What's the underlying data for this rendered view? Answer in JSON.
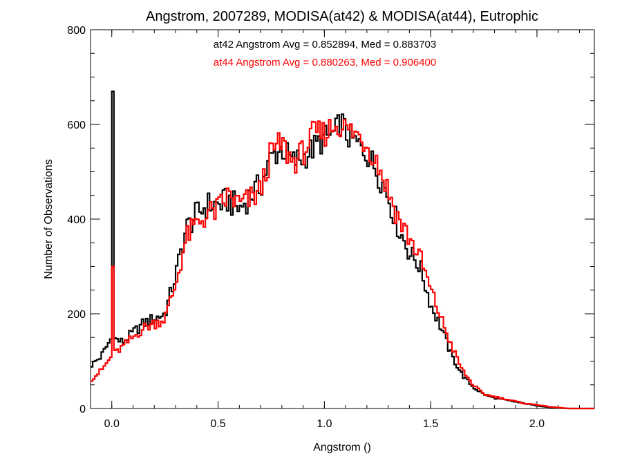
{
  "chart_data": {
    "type": "line",
    "title": "Angstrom, 2007289, MODISA(at42) & MODISA(at44), Eutrophic",
    "xlabel": "Angstrom ()",
    "ylabel": "Number of Observations",
    "xlim": [
      -0.1,
      2.27
    ],
    "ylim": [
      0,
      800
    ],
    "x_ticks": [
      0.0,
      0.5,
      1.0,
      1.5,
      2.0
    ],
    "x_tick_labels": [
      "0.0",
      "0.5",
      "1.0",
      "1.5",
      "2.0"
    ],
    "y_ticks": [
      0,
      200,
      400,
      600,
      800
    ],
    "y_tick_labels": [
      "0",
      "200",
      "400",
      "600",
      "800"
    ],
    "grid": false,
    "legend": "none",
    "annotations": [
      {
        "text": "at42 Angstrom Avg = 0.852894, Med = 0.883703",
        "color": "#000000"
      },
      {
        "text": "at44 Angstrom Avg = 0.880263, Med = 0.906400",
        "color": "#ff0000"
      }
    ],
    "bin_width": 0.01,
    "x": [
      -0.1,
      -0.05,
      0.0,
      0.05,
      0.1,
      0.15,
      0.2,
      0.25,
      0.3,
      0.35,
      0.4,
      0.45,
      0.5,
      0.55,
      0.6,
      0.65,
      0.7,
      0.75,
      0.8,
      0.85,
      0.9,
      0.95,
      1.0,
      1.05,
      1.08,
      1.1,
      1.15,
      1.2,
      1.25,
      1.3,
      1.35,
      1.4,
      1.45,
      1.5,
      1.55,
      1.6,
      1.65,
      1.7,
      1.75,
      1.8,
      1.85,
      1.9,
      1.95,
      2.0,
      2.05,
      2.1,
      2.15,
      2.27
    ],
    "series": [
      {
        "color": "#000000",
        "values": [
          90,
          110,
          150,
          140,
          160,
          180,
          190,
          200,
          280,
          380,
          410,
          430,
          430,
          440,
          420,
          450,
          470,
          530,
          550,
          520,
          530,
          550,
          570,
          580,
          610,
          580,
          560,
          540,
          500,
          450,
          380,
          330,
          300,
          220,
          170,
          110,
          70,
          45,
          30,
          22,
          18,
          14,
          10,
          6,
          3,
          1,
          0,
          0
        ],
        "spikes": [
          {
            "x": 0.0,
            "value": 670
          }
        ]
      },
      {
        "color": "#ff0000",
        "values": [
          60,
          80,
          110,
          130,
          150,
          170,
          180,
          190,
          260,
          360,
          390,
          410,
          420,
          450,
          430,
          440,
          460,
          540,
          560,
          520,
          540,
          580,
          580,
          600,
          600,
          590,
          580,
          560,
          520,
          460,
          400,
          360,
          320,
          250,
          190,
          130,
          80,
          50,
          30,
          25,
          20,
          15,
          10,
          8,
          4,
          2,
          0,
          0
        ],
        "spikes": [
          {
            "x": 0.0,
            "value": 300
          }
        ]
      }
    ]
  }
}
